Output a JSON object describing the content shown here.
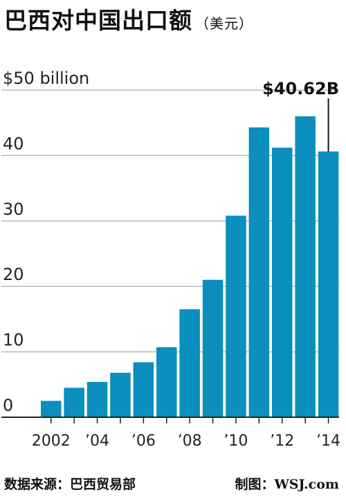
{
  "chart_data": {
    "type": "bar",
    "title": "巴西对中国出口额",
    "subtitle": "（美元）",
    "y_unit_label": "$50 billion",
    "x": [
      2002,
      2003,
      2004,
      2005,
      2006,
      2007,
      2008,
      2009,
      2010,
      2011,
      2012,
      2013,
      2014
    ],
    "x_tick_labels": [
      "2002",
      "",
      "’04",
      "",
      "’06",
      "",
      "’08",
      "",
      "’10",
      "",
      "’12",
      "",
      "’14"
    ],
    "values": [
      2.5,
      4.5,
      5.4,
      6.8,
      8.4,
      10.7,
      16.5,
      21.0,
      30.8,
      44.3,
      41.2,
      46.0,
      40.62
    ],
    "ylim": [
      0,
      50
    ],
    "y_ticks": [
      0,
      10,
      20,
      30,
      40,
      50
    ],
    "y_tick_labels": [
      "0",
      "10",
      "20",
      "30",
      "40",
      "$50 billion"
    ],
    "grid": true,
    "bar_color": "#0a8fbe",
    "annotation": {
      "label": "$40.62B",
      "index": 12
    }
  },
  "footer": {
    "source": "数据来源：巴西贸易部",
    "credit": "制图：WSJ.com"
  }
}
